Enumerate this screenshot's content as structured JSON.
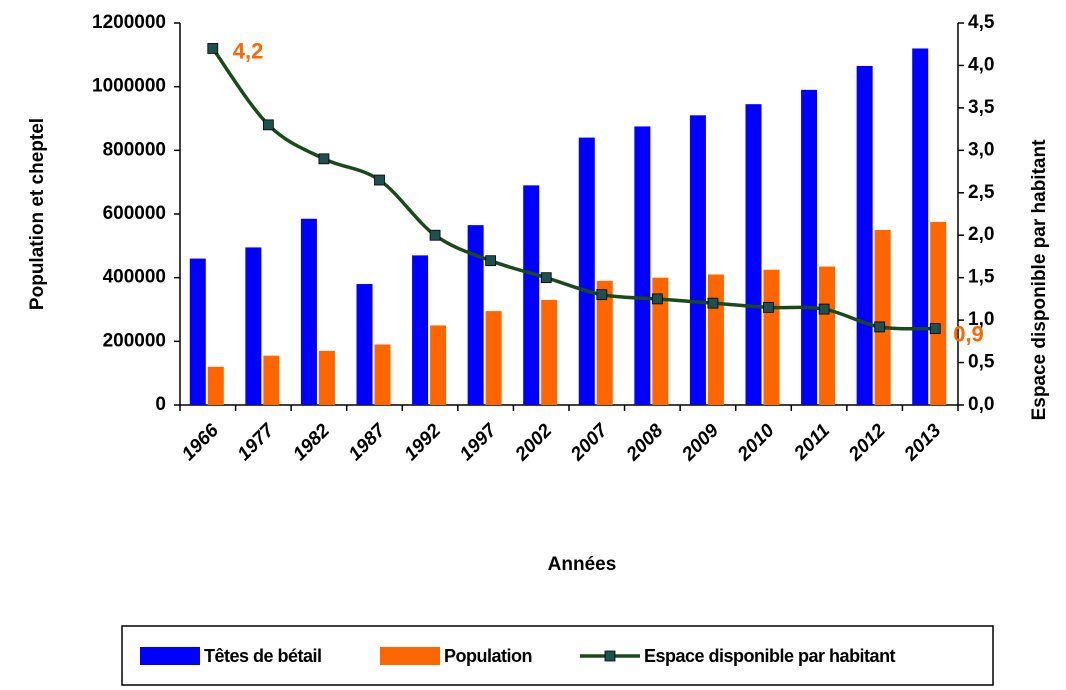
{
  "chart_data": {
    "type": "bar_line",
    "x_label": "Années",
    "y_label": "Population et cheptel",
    "y2_label": "Espace disponible par habitant",
    "categories": [
      "1966",
      "1977",
      "1982",
      "1987",
      "1992",
      "1997",
      "2002",
      "2007",
      "2008",
      "2009",
      "2010",
      "2011",
      "2012",
      "2013"
    ],
    "series": [
      {
        "name": "Têtes de bétail",
        "type": "bar",
        "color": "#0000ff",
        "values": [
          460000,
          495000,
          585000,
          380000,
          470000,
          565000,
          690000,
          840000,
          875000,
          910000,
          945000,
          990000,
          1065000,
          1120000
        ]
      },
      {
        "name": "Population",
        "type": "bar",
        "color": "#ff6600",
        "values": [
          120000,
          155000,
          170000,
          190000,
          250000,
          295000,
          330000,
          390000,
          400000,
          410000,
          425000,
          435000,
          550000,
          575000
        ]
      },
      {
        "name": "Espace disponible par habitant",
        "type": "line",
        "axis": "y2",
        "color": "#1a4a1a",
        "marker_color": "#1f5050",
        "label_color": "#ff6600",
        "values": [
          4.2,
          3.3,
          2.9,
          2.65,
          2.0,
          1.7,
          1.5,
          1.3,
          1.25,
          1.2,
          1.15,
          1.13,
          0.92,
          0.9
        ],
        "value_labels": [
          "4,2",
          null,
          null,
          null,
          null,
          null,
          null,
          null,
          null,
          null,
          null,
          null,
          null,
          "0,9"
        ]
      }
    ],
    "ylim": [
      0,
      1200000
    ],
    "yticks": [
      0,
      200000,
      400000,
      600000,
      800000,
      1000000,
      1200000
    ],
    "y2lim": [
      0,
      4.5
    ],
    "y2ticks": [
      {
        "value": 0,
        "label": "0,0"
      },
      {
        "value": 0.5,
        "label": "0,5"
      },
      {
        "value": 1,
        "label": "1,0"
      },
      {
        "value": 1.5,
        "label": "1,5"
      },
      {
        "value": 2,
        "label": "2,0"
      },
      {
        "value": 2.5,
        "label": "2,5"
      },
      {
        "value": 3,
        "label": "3,0"
      },
      {
        "value": 3.5,
        "label": "3,5"
      },
      {
        "value": 4,
        "label": "4,0"
      },
      {
        "value": 4.5,
        "label": "4,5"
      }
    ],
    "legend": "bottom"
  }
}
